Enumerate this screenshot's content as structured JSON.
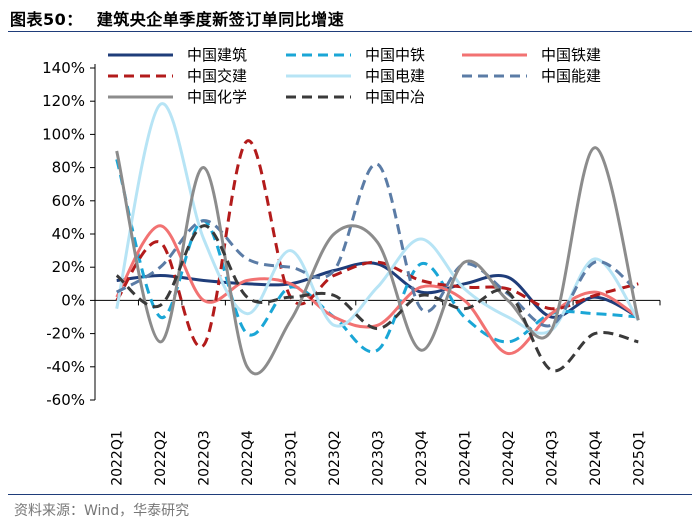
{
  "header": {
    "figure_label": "图表50：",
    "title": "建筑央企单季度新签订单同比增速"
  },
  "footer": {
    "source": "资料来源：Wind，华泰研究"
  },
  "colors": {
    "rule": "#1f3d7a"
  },
  "chart_data": {
    "type": "line",
    "title": "建筑央企单季度新签订单同比增速",
    "xlabel": "",
    "ylabel": "",
    "ylim": [
      -60,
      140
    ],
    "y_ticks": [
      -60,
      -40,
      -20,
      0,
      20,
      40,
      60,
      80,
      100,
      120,
      140
    ],
    "y_tick_labels": [
      "-60%",
      "-40%",
      "-20%",
      "0%",
      "20%",
      "40%",
      "60%",
      "80%",
      "100%",
      "120%",
      "140%"
    ],
    "categories": [
      "2022Q1",
      "2022Q2",
      "2022Q3",
      "2022Q4",
      "2023Q1",
      "2023Q2",
      "2023Q3",
      "2023Q4",
      "2024Q1",
      "2024Q2",
      "2024Q3",
      "2024Q4",
      "2025Q1"
    ],
    "legend_position": "top",
    "series": [
      {
        "name": "中国建筑",
        "color": "#1f3d7a",
        "dash": "solid",
        "values": [
          12,
          15,
          12,
          10,
          10,
          18,
          22,
          5,
          10,
          14,
          -10,
          2,
          -10
        ]
      },
      {
        "name": "中国中铁",
        "color": "#1aa6d6",
        "dash": "dashed",
        "values": [
          85,
          -10,
          48,
          -20,
          8,
          -10,
          -30,
          22,
          -10,
          -25,
          -8,
          -8,
          -10
        ]
      },
      {
        "name": "中国铁建",
        "color": "#f27272",
        "dash": "solid",
        "values": [
          2,
          45,
          0,
          12,
          10,
          -10,
          -15,
          8,
          0,
          -32,
          -8,
          5,
          -10
        ]
      },
      {
        "name": "中国交建",
        "color": "#b31b1b",
        "dash": "dashed",
        "values": [
          0,
          35,
          -27,
          96,
          2,
          15,
          23,
          12,
          8,
          7,
          -5,
          3,
          10
        ]
      },
      {
        "name": "中国电建",
        "color": "#b7e4f5",
        "dash": "solid",
        "values": [
          -5,
          118,
          37,
          -8,
          30,
          -15,
          8,
          37,
          7,
          -10,
          -18,
          25,
          -12
        ]
      },
      {
        "name": "中国能建",
        "color": "#5b7ca6",
        "dash": "dashed",
        "values": [
          5,
          20,
          48,
          25,
          20,
          18,
          82,
          -5,
          22,
          4,
          -15,
          23,
          5
        ]
      },
      {
        "name": "中国化学",
        "color": "#8c8c8c",
        "dash": "solid",
        "values": [
          90,
          -25,
          80,
          -40,
          -12,
          40,
          35,
          -30,
          23,
          0,
          -18,
          92,
          -12
        ]
      },
      {
        "name": "中国中冶",
        "color": "#3a3a3a",
        "dash": "dashed",
        "values": [
          15,
          -3,
          45,
          2,
          2,
          3,
          -17,
          3,
          -5,
          5,
          -42,
          -20,
          -25
        ]
      }
    ]
  }
}
